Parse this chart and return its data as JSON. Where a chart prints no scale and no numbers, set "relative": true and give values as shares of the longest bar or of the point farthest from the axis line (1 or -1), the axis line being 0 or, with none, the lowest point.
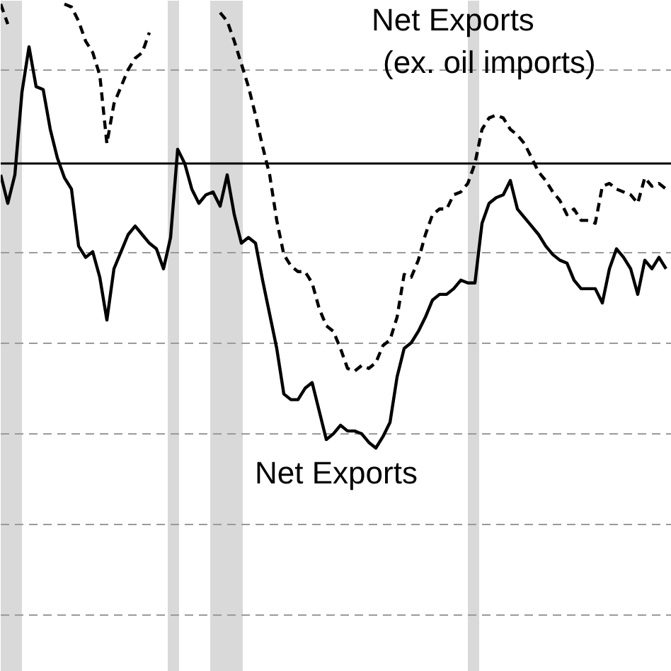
{
  "chart_data": {
    "type": "line",
    "relative": true,
    "tick_labels": false,
    "categories": [
      null,
      null,
      null,
      null,
      null,
      null,
      null,
      null,
      null,
      null,
      null,
      null,
      null,
      null,
      null,
      null,
      null,
      null,
      null,
      null,
      null,
      null,
      null,
      null,
      null,
      null,
      null,
      null,
      null,
      null,
      null,
      null,
      null,
      null,
      null,
      null,
      null,
      null,
      null,
      null,
      null,
      null,
      null,
      null,
      null,
      null,
      null,
      null,
      null,
      null,
      null,
      null,
      null,
      null,
      null,
      null,
      null,
      null,
      null,
      null,
      null,
      null,
      null,
      null,
      null,
      null,
      null,
      null,
      null,
      null,
      null,
      null,
      null,
      null,
      null,
      null,
      null,
      null,
      null,
      null,
      null,
      null,
      null,
      null,
      null,
      null,
      null,
      null,
      null,
      null,
      null,
      null,
      null,
      null,
      null
    ],
    "ylim": [
      -1.786,
      0.572
    ],
    "series": [
      {
        "name": "Net Exports",
        "color": "#000000",
        "line_style": "solid",
        "values": [
          -0.04,
          -0.14,
          -0.04,
          0.25,
          0.41,
          0.27,
          0.26,
          0.12,
          0.02,
          -0.05,
          -0.09,
          -0.29,
          -0.33,
          -0.31,
          -0.4,
          -0.55,
          -0.37,
          -0.31,
          -0.25,
          -0.22,
          -0.25,
          -0.28,
          -0.3,
          -0.37,
          -0.26,
          0.05,
          0.0,
          -0.09,
          -0.14,
          -0.11,
          -0.1,
          -0.15,
          -0.04,
          -0.18,
          -0.28,
          -0.26,
          -0.28,
          -0.41,
          -0.53,
          -0.65,
          -0.81,
          -0.83,
          -0.83,
          -0.79,
          -0.77,
          -0.87,
          -0.97,
          -0.95,
          -0.92,
          -0.94,
          -0.94,
          -0.95,
          -0.98,
          -1.0,
          -0.96,
          -0.91,
          -0.75,
          -0.65,
          -0.63,
          -0.59,
          -0.54,
          -0.48,
          -0.46,
          -0.46,
          -0.44,
          -0.41,
          -0.42,
          -0.42,
          -0.21,
          -0.14,
          -0.12,
          -0.11,
          -0.06,
          -0.16,
          -0.19,
          -0.22,
          -0.25,
          -0.29,
          -0.32,
          -0.34,
          -0.35,
          -0.41,
          -0.44,
          -0.44,
          -0.44,
          -0.49,
          -0.37,
          -0.3,
          -0.33,
          -0.37,
          -0.46,
          -0.34,
          -0.37,
          -0.33,
          -0.37
        ]
      },
      {
        "name": "Net Exports (ex. oil imports)",
        "color": "#000000",
        "line_style": "dashed",
        "values": [
          0.56,
          0.49,
          null,
          null,
          null,
          null,
          null,
          null,
          null,
          0.56,
          0.55,
          0.5,
          0.43,
          0.39,
          0.31,
          0.07,
          0.21,
          0.27,
          0.33,
          0.37,
          0.39,
          0.46,
          null,
          null,
          null,
          null,
          null,
          null,
          null,
          null,
          null,
          0.53,
          0.5,
          0.43,
          0.35,
          0.27,
          0.17,
          0.06,
          -0.04,
          -0.2,
          -0.32,
          -0.36,
          -0.38,
          -0.38,
          -0.42,
          -0.51,
          -0.57,
          -0.59,
          -0.65,
          -0.72,
          -0.73,
          -0.71,
          -0.72,
          -0.7,
          -0.64,
          -0.62,
          -0.54,
          -0.39,
          -0.4,
          -0.34,
          -0.25,
          -0.18,
          -0.16,
          -0.16,
          -0.11,
          -0.1,
          -0.07,
          0.0,
          0.12,
          0.16,
          0.17,
          0.16,
          0.12,
          0.1,
          0.07,
          0.02,
          -0.03,
          -0.06,
          -0.1,
          -0.13,
          -0.18,
          -0.16,
          -0.2,
          -0.2,
          -0.21,
          -0.08,
          -0.07,
          -0.09,
          -0.1,
          -0.11,
          -0.14,
          -0.05,
          -0.08,
          -0.07,
          -0.09
        ]
      }
    ]
  }
}
